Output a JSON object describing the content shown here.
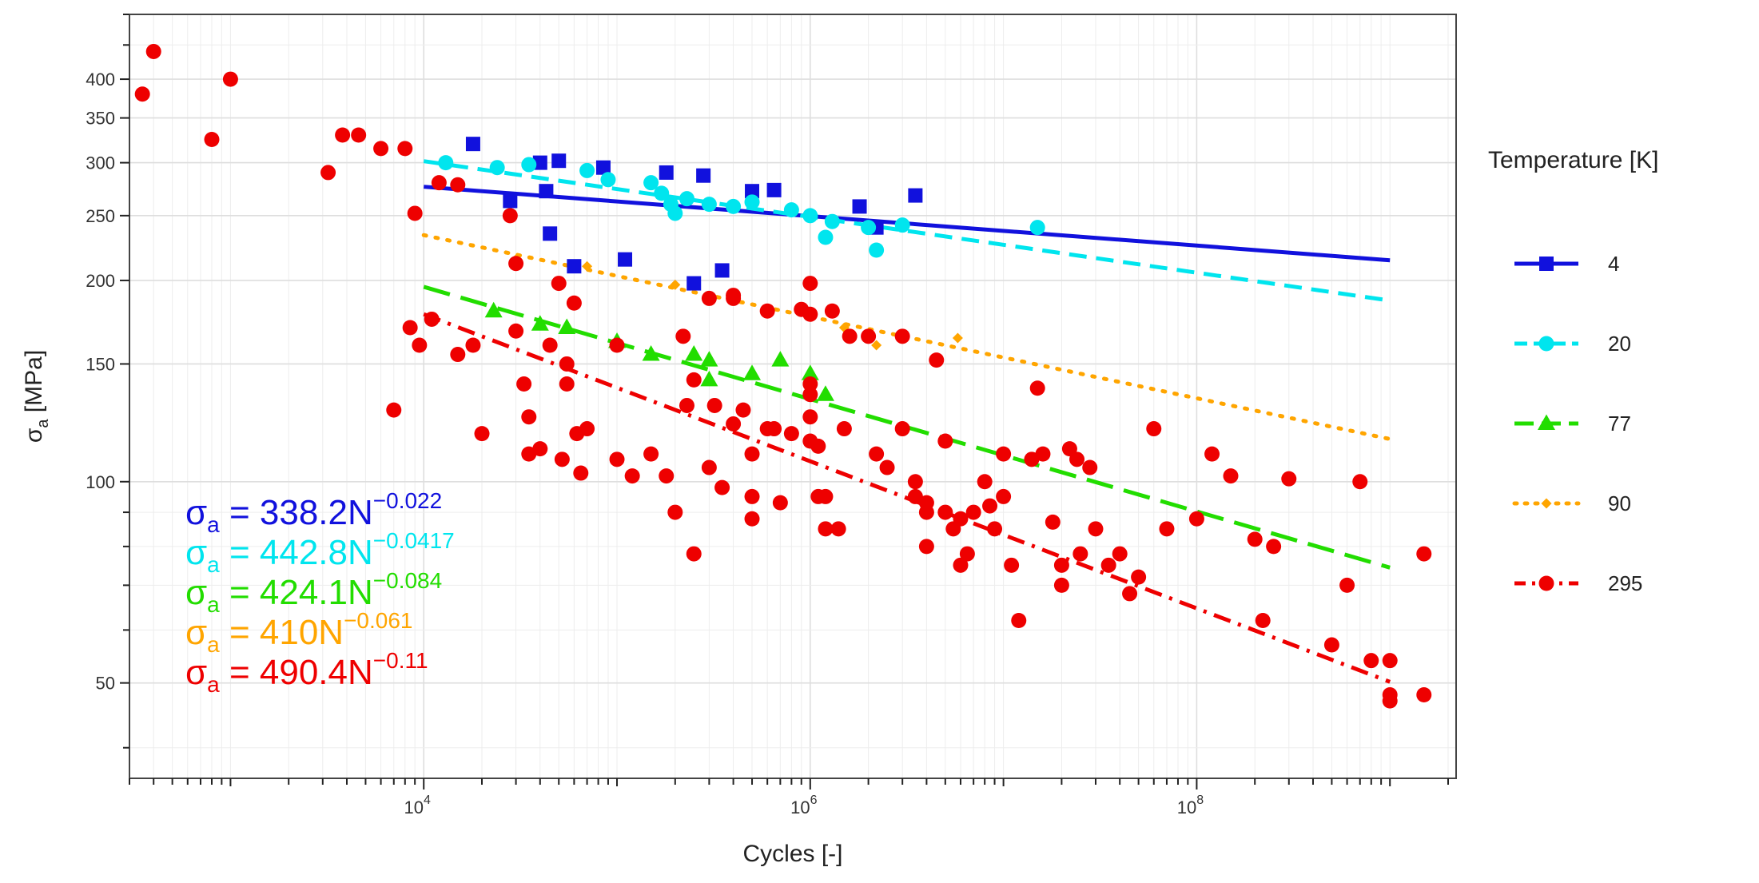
{
  "chart_data": {
    "type": "scatter",
    "title": "",
    "xlabel": "Cycles [-]",
    "ylabel": {
      "base": "σ",
      "sub": "a",
      "rest": " [MPa]"
    },
    "x_scale": "log",
    "y_scale": "log",
    "xlim": [
      300,
      2200000000
    ],
    "ylim": [
      36,
      500
    ],
    "x_ticks": [
      {
        "value": 10000,
        "base": "10",
        "exp": "4"
      },
      {
        "value": 1000000,
        "base": "10",
        "exp": "6"
      },
      {
        "value": 100000000,
        "base": "10",
        "exp": "8"
      }
    ],
    "y_ticks": [
      {
        "value": 50,
        "label": "50"
      },
      {
        "value": 100,
        "label": "100"
      },
      {
        "value": 150,
        "label": "150"
      },
      {
        "value": 200,
        "label": "200"
      },
      {
        "value": 250,
        "label": "250"
      },
      {
        "value": 300,
        "label": "300"
      },
      {
        "value": 350,
        "label": "350"
      },
      {
        "value": 400,
        "label": "400"
      }
    ],
    "legend": {
      "title": "Temperature [K]",
      "position": "right"
    },
    "series": [
      {
        "name": "4",
        "color": "#1111dd",
        "marker": "square",
        "dash": "solid",
        "fit": {
          "coef": 338.2,
          "exp": -0.022,
          "x_range": [
            10000,
            1000000000
          ]
        },
        "points": [
          [
            18000,
            320
          ],
          [
            28000,
            263
          ],
          [
            40000,
            300
          ],
          [
            43000,
            272
          ],
          [
            45000,
            235
          ],
          [
            50000,
            302
          ],
          [
            60000,
            210
          ],
          [
            85000,
            295
          ],
          [
            110000,
            215
          ],
          [
            180000,
            290
          ],
          [
            250000,
            198
          ],
          [
            280000,
            287
          ],
          [
            350000,
            207
          ],
          [
            500000,
            272
          ],
          [
            650000,
            273
          ],
          [
            1800000,
            258
          ],
          [
            2200000,
            240
          ],
          [
            3500000,
            268
          ]
        ]
      },
      {
        "name": "20",
        "color": "#00e5ee",
        "marker": "circle",
        "dash": "dashed",
        "fit": {
          "coef": 442.8,
          "exp": -0.0417,
          "x_range": [
            10000,
            1000000000
          ]
        },
        "points": [
          [
            13000,
            300
          ],
          [
            24000,
            295
          ],
          [
            35000,
            298
          ],
          [
            70000,
            292
          ],
          [
            90000,
            283
          ],
          [
            150000,
            280
          ],
          [
            170000,
            270
          ],
          [
            190000,
            260
          ],
          [
            200000,
            252
          ],
          [
            230000,
            265
          ],
          [
            300000,
            260
          ],
          [
            400000,
            258
          ],
          [
            500000,
            262
          ],
          [
            800000,
            255
          ],
          [
            1000000,
            250
          ],
          [
            1200000,
            232
          ],
          [
            1300000,
            245
          ],
          [
            2000000,
            240
          ],
          [
            2200000,
            222
          ],
          [
            3000000,
            242
          ],
          [
            15000000,
            240
          ]
        ]
      },
      {
        "name": "77",
        "color": "#22dd00",
        "marker": "triangle",
        "dash": "longdash",
        "fit": {
          "coef": 424.1,
          "exp": -0.084,
          "x_range": [
            10000,
            1000000000
          ]
        },
        "points": [
          [
            23000,
            180
          ],
          [
            40000,
            172
          ],
          [
            55000,
            170
          ],
          [
            100000,
            162
          ],
          [
            150000,
            155
          ],
          [
            250000,
            155
          ],
          [
            300000,
            152
          ],
          [
            300000,
            142
          ],
          [
            500000,
            145
          ],
          [
            700000,
            152
          ],
          [
            1000000,
            145
          ],
          [
            1200000,
            135
          ]
        ]
      },
      {
        "name": "90",
        "color": "#ffa500",
        "marker": "diamond",
        "dash": "dotted",
        "fit": {
          "coef": 410,
          "exp": -0.061,
          "x_range": [
            10000,
            1000000000
          ]
        },
        "points": [
          [
            30000,
            215
          ],
          [
            70000,
            210
          ],
          [
            200000,
            197
          ],
          [
            1500000,
            170
          ],
          [
            2200000,
            160
          ],
          [
            5800000,
            164
          ]
        ]
      },
      {
        "name": "295",
        "color": "#ee0000",
        "marker": "circle",
        "dash": "dotdash",
        "fit": {
          "coef": 490.4,
          "exp": -0.11,
          "x_range": [
            10000,
            1000000000
          ]
        },
        "points": [
          [
            350,
            380
          ],
          [
            400,
            440
          ],
          [
            800,
            325
          ],
          [
            1000,
            400
          ],
          [
            3200,
            290
          ],
          [
            3800,
            330
          ],
          [
            4600,
            330
          ],
          [
            6000,
            315
          ],
          [
            7000,
            128
          ],
          [
            8000,
            315
          ],
          [
            8500,
            170
          ],
          [
            9000,
            252
          ],
          [
            9500,
            160
          ],
          [
            11000,
            175
          ],
          [
            12000,
            280
          ],
          [
            15000,
            278
          ],
          [
            15000,
            155
          ],
          [
            18000,
            160
          ],
          [
            20000,
            118
          ],
          [
            28000,
            250
          ],
          [
            30000,
            212
          ],
          [
            30000,
            168
          ],
          [
            33000,
            140
          ],
          [
            35000,
            125
          ],
          [
            35000,
            110
          ],
          [
            40000,
            112
          ],
          [
            45000,
            160
          ],
          [
            50000,
            198
          ],
          [
            52000,
            108
          ],
          [
            55000,
            140
          ],
          [
            55000,
            150
          ],
          [
            60000,
            185
          ],
          [
            62000,
            118
          ],
          [
            65000,
            103
          ],
          [
            70000,
            120
          ],
          [
            100000,
            160
          ],
          [
            100000,
            108
          ],
          [
            120000,
            102
          ],
          [
            150000,
            110
          ],
          [
            180000,
            102
          ],
          [
            200000,
            90
          ],
          [
            220000,
            165
          ],
          [
            230000,
            130
          ],
          [
            250000,
            78
          ],
          [
            250000,
            142
          ],
          [
            300000,
            188
          ],
          [
            300000,
            105
          ],
          [
            320000,
            130
          ],
          [
            350000,
            98
          ],
          [
            400000,
            188
          ],
          [
            400000,
            190
          ],
          [
            400000,
            122
          ],
          [
            450000,
            128
          ],
          [
            500000,
            95
          ],
          [
            500000,
            110
          ],
          [
            500000,
            88
          ],
          [
            600000,
            180
          ],
          [
            600000,
            120
          ],
          [
            650000,
            120
          ],
          [
            700000,
            93
          ],
          [
            800000,
            118
          ],
          [
            900000,
            181
          ],
          [
            1000000,
            198
          ],
          [
            1000000,
            178
          ],
          [
            1000000,
            140
          ],
          [
            1000000,
            135
          ],
          [
            1000000,
            125
          ],
          [
            1000000,
            115
          ],
          [
            1100000,
            113
          ],
          [
            1100000,
            95
          ],
          [
            1200000,
            95
          ],
          [
            1200000,
            85
          ],
          [
            1300000,
            180
          ],
          [
            1400000,
            85
          ],
          [
            1500000,
            120
          ],
          [
            1600000,
            165
          ],
          [
            2000000,
            165
          ],
          [
            2200000,
            110
          ],
          [
            2500000,
            105
          ],
          [
            3000000,
            165
          ],
          [
            3000000,
            120
          ],
          [
            3500000,
            100
          ],
          [
            3500000,
            95
          ],
          [
            4000000,
            93
          ],
          [
            4000000,
            90
          ],
          [
            4000000,
            80
          ],
          [
            4500000,
            152
          ],
          [
            5000000,
            115
          ],
          [
            5000000,
            90
          ],
          [
            5500000,
            85
          ],
          [
            6000000,
            88
          ],
          [
            6000000,
            75
          ],
          [
            6500000,
            78
          ],
          [
            7000000,
            90
          ],
          [
            8000000,
            100
          ],
          [
            8500000,
            92
          ],
          [
            9000000,
            85
          ],
          [
            10000000,
            110
          ],
          [
            10000000,
            95
          ],
          [
            11000000,
            75
          ],
          [
            12000000,
            62
          ],
          [
            14000000,
            108
          ],
          [
            15000000,
            138
          ],
          [
            16000000,
            110
          ],
          [
            18000000,
            87
          ],
          [
            20000000,
            75
          ],
          [
            20000000,
            70
          ],
          [
            22000000,
            112
          ],
          [
            24000000,
            108
          ],
          [
            25000000,
            78
          ],
          [
            28000000,
            105
          ],
          [
            30000000,
            85
          ],
          [
            35000000,
            75
          ],
          [
            40000000,
            78
          ],
          [
            45000000,
            68
          ],
          [
            50000000,
            72
          ],
          [
            60000000,
            120
          ],
          [
            70000000,
            85
          ],
          [
            100000000,
            88
          ],
          [
            120000000,
            110
          ],
          [
            150000000,
            102
          ],
          [
            200000000,
            82
          ],
          [
            220000000,
            62
          ],
          [
            250000000,
            80
          ],
          [
            300000000,
            101
          ],
          [
            500000000,
            57
          ],
          [
            600000000,
            70
          ],
          [
            700000000,
            100
          ],
          [
            800000000,
            54
          ],
          [
            1000000000,
            54
          ],
          [
            1000000000,
            48
          ],
          [
            1000000000,
            47
          ],
          [
            1500000000,
            78
          ],
          [
            1500000000,
            48
          ]
        ]
      }
    ],
    "equations": [
      {
        "series": "4",
        "base": "σ",
        "sub": "a",
        "text": " = 338.2N",
        "exp": "−0.022"
      },
      {
        "series": "20",
        "base": "σ",
        "sub": "a",
        "text": " = 442.8N",
        "exp": "−0.0417"
      },
      {
        "series": "77",
        "base": "σ",
        "sub": "a",
        "text": " = 424.1N",
        "exp": "−0.084"
      },
      {
        "series": "90",
        "base": "σ",
        "sub": "a",
        "text": " = 410N",
        "exp": "−0.061"
      },
      {
        "series": "295",
        "base": "σ",
        "sub": "a",
        "text": " = 490.4N",
        "exp": "−0.11"
      }
    ]
  }
}
